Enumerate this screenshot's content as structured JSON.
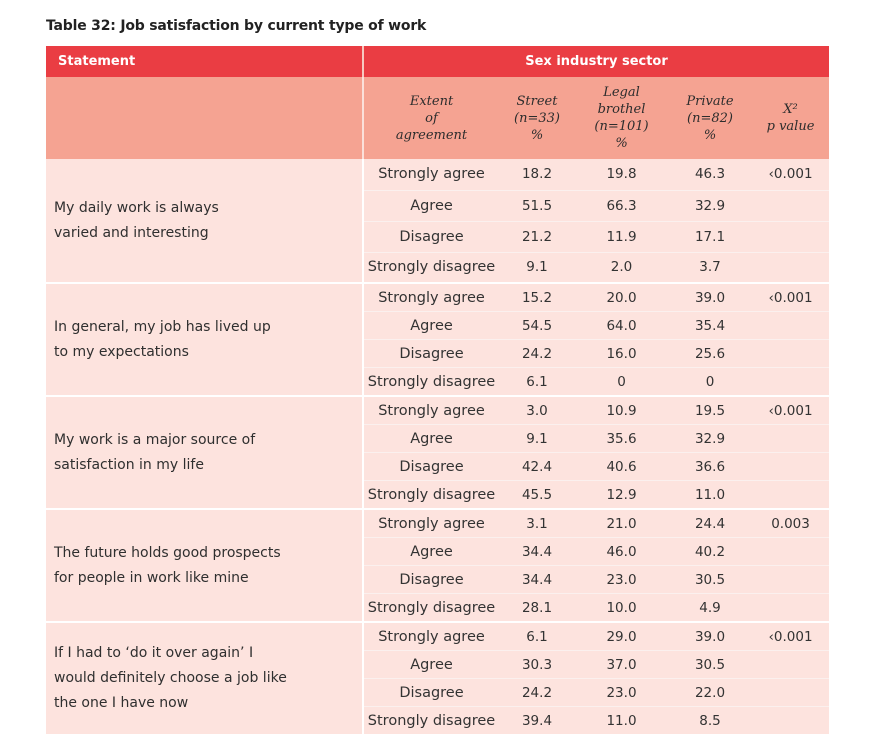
{
  "caption": "Table 32: Job satisfaction by current type of work",
  "header": {
    "statement": "Statement",
    "sector": "Sex industry sector",
    "columns": [
      {
        "lines": [
          "Extent",
          "of",
          "agreement"
        ]
      },
      {
        "lines": [
          "Street",
          "(n=33)",
          "%"
        ]
      },
      {
        "lines": [
          "Legal",
          "brothel",
          "(n=101)",
          "%"
        ]
      },
      {
        "lines": [
          "Private",
          "(n=82)",
          "%"
        ]
      },
      {
        "lines": [
          "X²",
          "p value"
        ]
      }
    ]
  },
  "rows": [
    {
      "statement_lines": [
        "My daily work is always",
        "varied and interesting"
      ],
      "p_value": "‹0.001",
      "answers": [
        {
          "label": "Strongly agree",
          "street": "18.2",
          "legal": "19.8",
          "private": "46.3"
        },
        {
          "label": "Agree",
          "street": "51.5",
          "legal": "66.3",
          "private": "32.9"
        },
        {
          "label": "Disagree",
          "street": "21.2",
          "legal": "11.9",
          "private": "17.1"
        },
        {
          "label": "Strongly disagree",
          "street": "9.1",
          "legal": "2.0",
          "private": "3.7"
        }
      ]
    },
    {
      "statement_lines": [
        "In general, my job has lived up",
        "to my expectations"
      ],
      "p_value": "‹0.001",
      "answers": [
        {
          "label": "Strongly agree",
          "street": "15.2",
          "legal": "20.0",
          "private": "39.0"
        },
        {
          "label": "Agree",
          "street": "54.5",
          "legal": "64.0",
          "private": "35.4"
        },
        {
          "label": "Disagree",
          "street": "24.2",
          "legal": "16.0",
          "private": "25.6"
        },
        {
          "label": "Strongly disagree",
          "street": "6.1",
          "legal": "0",
          "private": "0"
        }
      ]
    },
    {
      "statement_lines": [
        "My work is a major source of",
        "satisfaction in my life"
      ],
      "p_value": "‹0.001",
      "answers": [
        {
          "label": "Strongly agree",
          "street": "3.0",
          "legal": "10.9",
          "private": "19.5"
        },
        {
          "label": "Agree",
          "street": "9.1",
          "legal": "35.6",
          "private": "32.9"
        },
        {
          "label": "Disagree",
          "street": "42.4",
          "legal": "40.6",
          "private": "36.6"
        },
        {
          "label": "Strongly disagree",
          "street": "45.5",
          "legal": "12.9",
          "private": "11.0"
        }
      ]
    },
    {
      "statement_lines": [
        "The future holds good prospects",
        "for people in work like mine"
      ],
      "p_value": "0.003",
      "answers": [
        {
          "label": "Strongly agree",
          "street": "3.1",
          "legal": "21.0",
          "private": "24.4"
        },
        {
          "label": "Agree",
          "street": "34.4",
          "legal": "46.0",
          "private": "40.2"
        },
        {
          "label": "Disagree",
          "street": "34.4",
          "legal": "23.0",
          "private": "30.5"
        },
        {
          "label": "Strongly disagree",
          "street": "28.1",
          "legal": "10.0",
          "private": "4.9"
        }
      ]
    },
    {
      "statement_lines": [
        "If I had to ‘do it over again’ I",
        "would definitely choose a job like",
        "the one I have now"
      ],
      "p_value": "‹0.001",
      "answers": [
        {
          "label": "Strongly agree",
          "street": "6.1",
          "legal": "29.0",
          "private": "39.0"
        },
        {
          "label": "Agree",
          "street": "30.3",
          "legal": "37.0",
          "private": "30.5"
        },
        {
          "label": "Disagree",
          "street": "24.2",
          "legal": "23.0",
          "private": "22.0"
        },
        {
          "label": "Strongly disagree",
          "street": "39.4",
          "legal": "11.0",
          "private": "8.5"
        }
      ]
    }
  ]
}
